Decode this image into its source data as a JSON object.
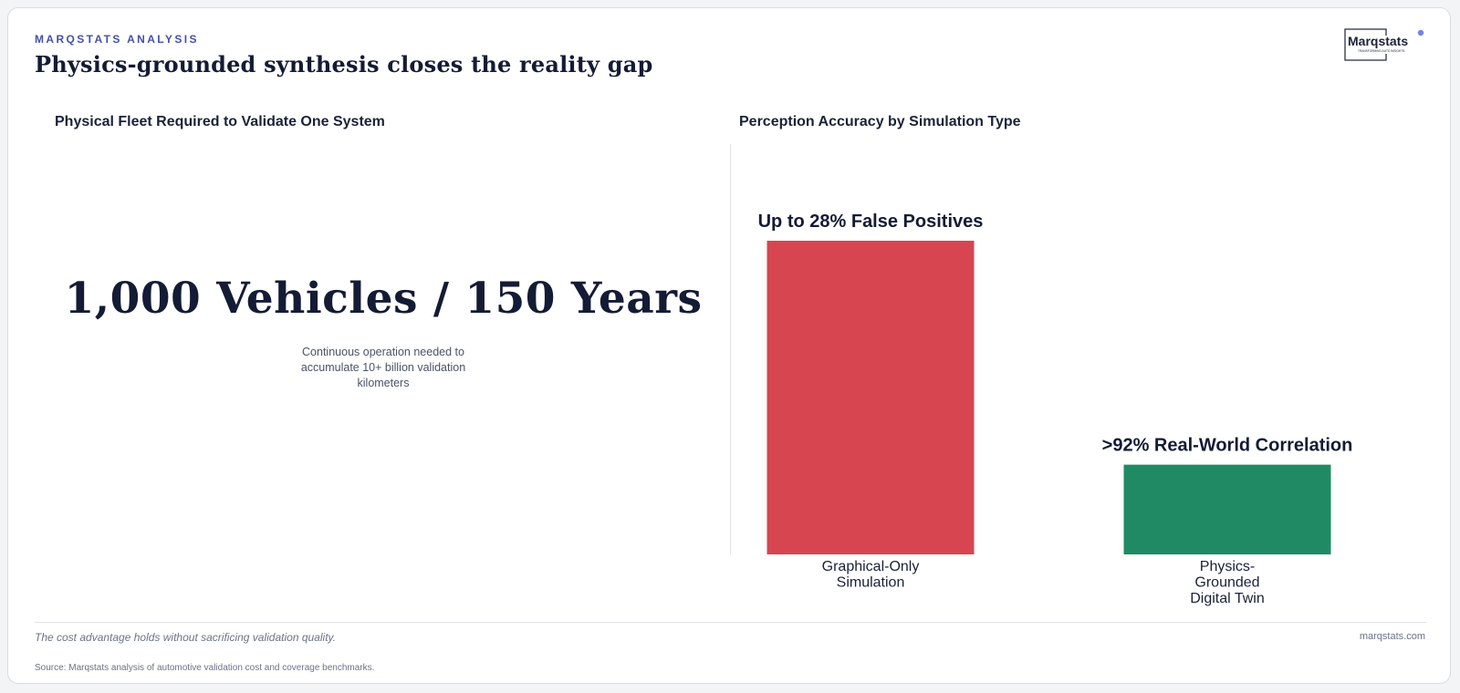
{
  "header": {
    "eyebrow": "MARQSTATS ANALYSIS",
    "title": "Physics-grounded synthesis closes the reality gap"
  },
  "logo": {
    "wordmark": "Marqstats",
    "tagline": "TRANSFORMING AUTO INSIGHTS",
    "accent_color": "#5b6ee1"
  },
  "left_panel": {
    "title": "Physical Fleet Required to Validate One System",
    "big_stat": "1,000 Vehicles / 150 Years",
    "caption_lines": [
      "Continuous operation needed to",
      "accumulate 10+ billion validation",
      "kilometers"
    ]
  },
  "right_panel": {
    "title": "Perception Accuracy by Simulation Type"
  },
  "chart_data": {
    "type": "bar",
    "title": "Perception Accuracy by Simulation Type",
    "categories": [
      [
        "Graphical-Only",
        "Simulation"
      ],
      [
        "Physics-",
        "Grounded",
        "Digital Twin"
      ]
    ],
    "values": [
      100,
      28.6
    ],
    "data_labels": [
      "Up to 28% False Positives",
      ">92% Real-World Correlation"
    ],
    "colors": [
      "#d64550",
      "#1f8a63"
    ],
    "ylim": [
      0,
      100
    ],
    "grid": false,
    "xlabel": "",
    "ylabel": ""
  },
  "footer": {
    "note": "The cost advantage holds without sacrificing validation quality.",
    "site": "marqstats.com",
    "source": "Source: Marqstats analysis of automotive validation cost and coverage benchmarks."
  }
}
